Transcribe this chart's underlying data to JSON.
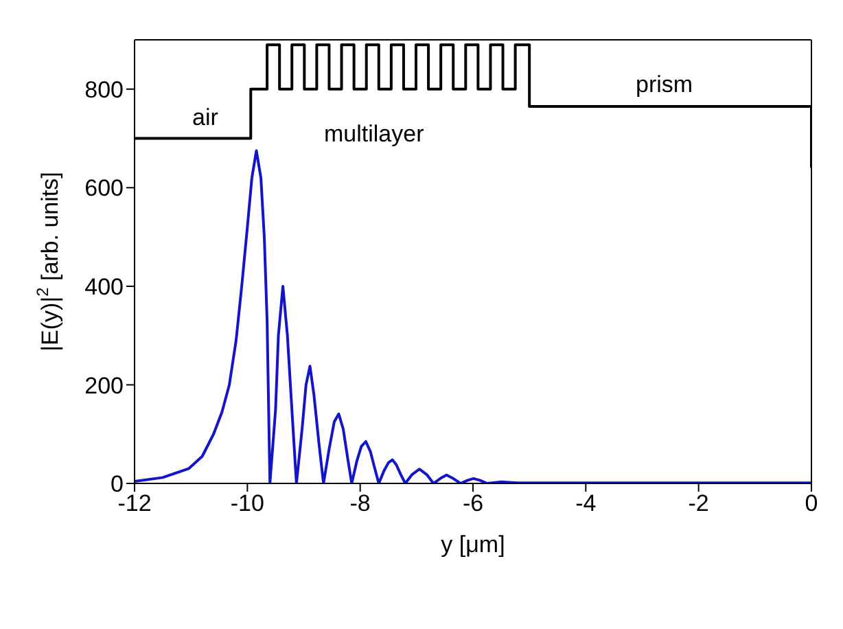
{
  "chart_data": {
    "type": "line",
    "xlabel": "y [μm]",
    "ylabel": "|E(y)|$^{2}$ [arb. units]",
    "xlim": [
      -12,
      0
    ],
    "xticks": [
      -12,
      -10,
      -8,
      -6,
      -4,
      -2,
      0
    ],
    "ylim": [
      0,
      900
    ],
    "yticks": [
      0,
      200,
      400,
      600,
      800
    ],
    "grid": false,
    "marker": "none",
    "series": [
      {
        "color": "#000000",
        "x": [
          -12,
          -9.94,
          -9.94,
          -9.65,
          -9.65,
          -9.43,
          -9.43,
          -9.21,
          -9.21,
          -8.99,
          -8.99,
          -8.77,
          -8.77,
          -8.55,
          -8.55,
          -8.33,
          -8.33,
          -8.11,
          -8.11,
          -7.89,
          -7.89,
          -7.67,
          -7.67,
          -7.45,
          -7.45,
          -7.23,
          -7.23,
          -7.01,
          -7.01,
          -6.79,
          -6.79,
          -6.57,
          -6.57,
          -6.35,
          -6.35,
          -6.13,
          -6.13,
          -5.91,
          -5.91,
          -5.69,
          -5.69,
          -5.47,
          -5.47,
          -5.25,
          -5.25,
          -5.0,
          -5.0,
          0,
          0
        ],
        "values": [
          700,
          700,
          800,
          800,
          890,
          890,
          800,
          800,
          890,
          890,
          800,
          800,
          890,
          890,
          800,
          800,
          890,
          890,
          800,
          800,
          890,
          890,
          800,
          800,
          890,
          890,
          800,
          800,
          890,
          890,
          800,
          800,
          890,
          890,
          800,
          800,
          890,
          890,
          800,
          800,
          890,
          890,
          800,
          800,
          890,
          890,
          765,
          765,
          640
        ]
      },
      {
        "color": "#1414c8",
        "x": [
          -12,
          -11.5,
          -11.04,
          -10.8,
          -10.6,
          -10.45,
          -10.32,
          -10.2,
          -10.1,
          -10.0,
          -9.92,
          -9.84,
          -9.76,
          -9.7,
          -9.65,
          -9.6,
          -9.5,
          -9.45,
          -9.37,
          -9.29,
          -9.2,
          -9.13,
          -9.03,
          -8.96,
          -8.89,
          -8.82,
          -8.73,
          -8.65,
          -8.55,
          -8.46,
          -8.38,
          -8.3,
          -8.22,
          -8.15,
          -8.06,
          -7.98,
          -7.9,
          -7.82,
          -7.74,
          -7.67,
          -7.58,
          -7.5,
          -7.43,
          -7.36,
          -7.28,
          -7.2,
          -7.08,
          -6.95,
          -6.82,
          -6.7,
          -6.58,
          -6.47,
          -6.35,
          -6.22,
          -6.1,
          -5.99,
          -5.87,
          -5.75,
          -5.5,
          -5.2,
          -4,
          -2,
          0
        ],
        "values": [
          4,
          12,
          30,
          55,
          100,
          145,
          200,
          290,
          400,
          520,
          620,
          675,
          620,
          500,
          330,
          0,
          150,
          300,
          400,
          300,
          130,
          0,
          110,
          200,
          238,
          180,
          80,
          0,
          70,
          125,
          141,
          110,
          50,
          0,
          45,
          75,
          85,
          65,
          30,
          0,
          25,
          42,
          48,
          38,
          18,
          0,
          18,
          29,
          18,
          0,
          10,
          17,
          10,
          0,
          6,
          10,
          6,
          0,
          3,
          1,
          1,
          1,
          1
        ]
      }
    ],
    "annotations": [
      "air",
      "multilayer",
      "prism"
    ]
  }
}
